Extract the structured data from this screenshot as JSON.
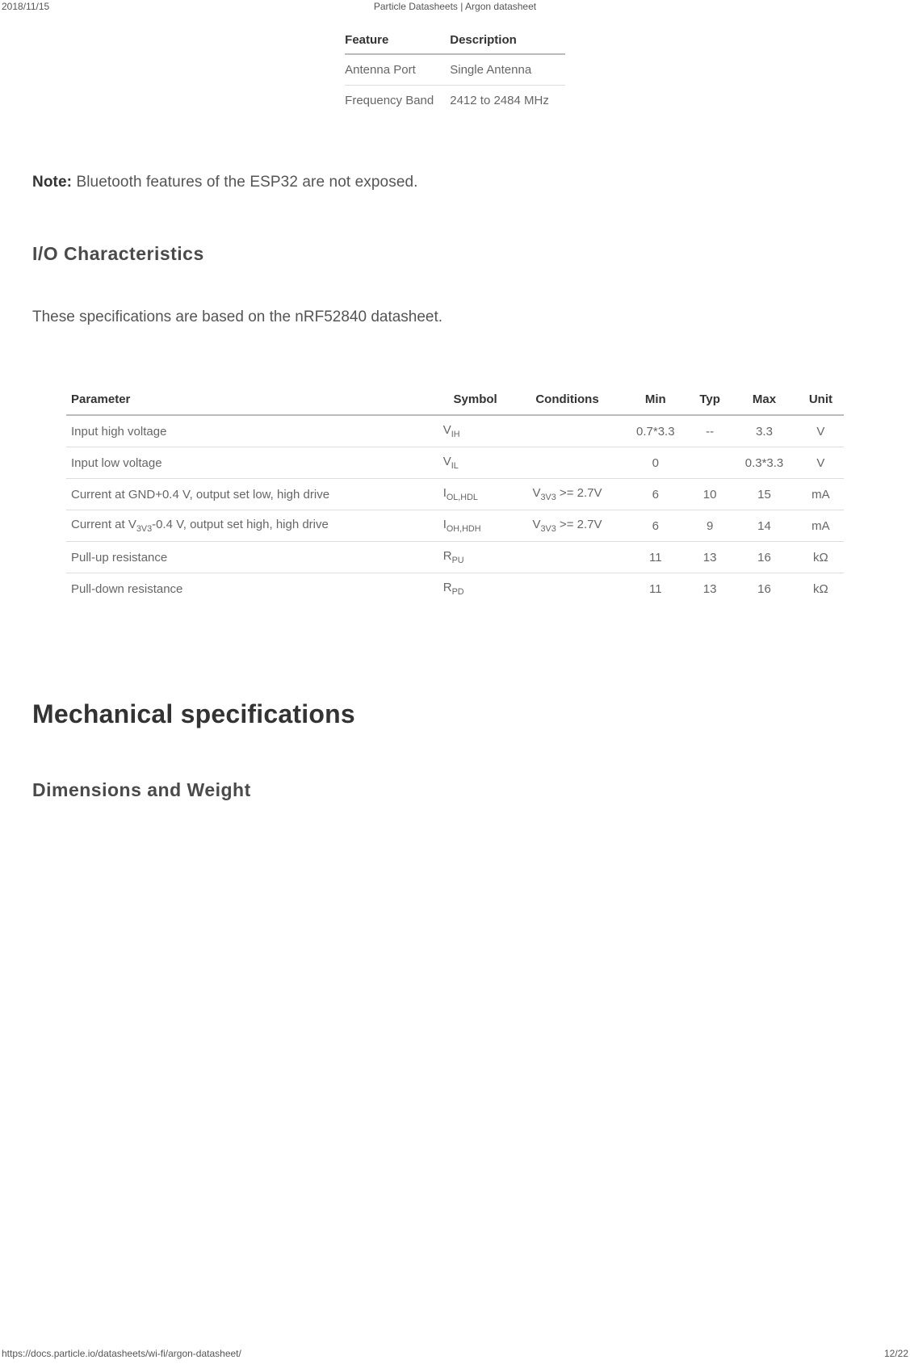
{
  "header": {
    "date": "2018/11/15",
    "title": "Particle Datasheets | Argon datasheet"
  },
  "feature_table": {
    "columns": [
      "Feature",
      "Description"
    ],
    "rows": [
      [
        "Antenna Port",
        "Single Antenna"
      ],
      [
        "Frequency Band",
        "2412 to 2484 MHz"
      ]
    ]
  },
  "note": {
    "label": "Note:",
    "text": " Bluetooth features of the ESP32 are not exposed."
  },
  "io_section": {
    "heading": "I/O Characteristics",
    "para": "These specifications are based on the nRF52840 datasheet."
  },
  "io_table": {
    "columns": [
      "Parameter",
      "Symbol",
      "Conditions",
      "Min",
      "Typ",
      "Max",
      "Unit"
    ],
    "rows": [
      {
        "parameter": "Input high voltage",
        "symbol_base": "V",
        "symbol_sub": "IH",
        "cond_base": "",
        "cond_sub": "",
        "cond_after": "",
        "min": "0.7*3.3",
        "typ": "--",
        "max": "3.3",
        "unit": "V"
      },
      {
        "parameter": "Input low voltage",
        "symbol_base": "V",
        "symbol_sub": "IL",
        "cond_base": "",
        "cond_sub": "",
        "cond_after": "",
        "min": "0",
        "typ": "",
        "max": "0.3*3.3",
        "unit": "V"
      },
      {
        "parameter": "Current at GND+0.4 V, output set low, high drive",
        "symbol_base": "I",
        "symbol_sub": "OL,HDL",
        "cond_base": "V",
        "cond_sub": "3V3",
        "cond_after": " >= 2.7V",
        "min": "6",
        "typ": "10",
        "max": "15",
        "unit": "mA"
      },
      {
        "parameter_pre": "Current at V",
        "parameter_sub": "3V3",
        "parameter_post": "-0.4 V, output set high, high drive",
        "symbol_base": "I",
        "symbol_sub": "OH,HDH",
        "cond_base": "V",
        "cond_sub": "3V3",
        "cond_after": " >= 2.7V",
        "min": "6",
        "typ": "9",
        "max": "14",
        "unit": "mA"
      },
      {
        "parameter": "Pull-up resistance",
        "symbol_base": "R",
        "symbol_sub": "PU",
        "cond_base": "",
        "cond_sub": "",
        "cond_after": "",
        "min": "11",
        "typ": "13",
        "max": "16",
        "unit": "kΩ"
      },
      {
        "parameter": "Pull-down resistance",
        "symbol_base": "R",
        "symbol_sub": "PD",
        "cond_base": "",
        "cond_sub": "",
        "cond_after": "",
        "min": "11",
        "typ": "13",
        "max": "16",
        "unit": "kΩ"
      }
    ]
  },
  "mech": {
    "heading": "Mechanical specifications",
    "sub": "Dimensions and Weight"
  },
  "footer": {
    "url": "https://docs.particle.io/datasheets/wi-fi/argon-datasheet/",
    "page": "12/22"
  }
}
